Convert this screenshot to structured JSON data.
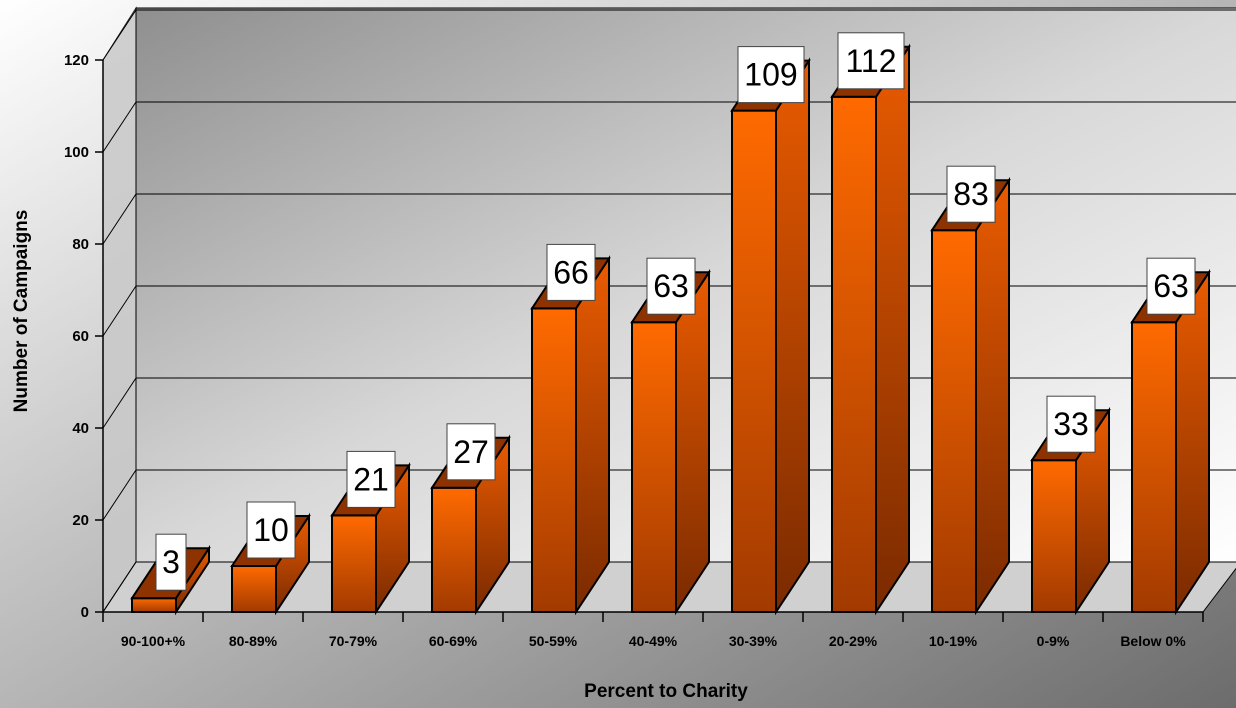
{
  "chart_data": {
    "type": "bar",
    "title": "",
    "xlabel": "Percent to Charity",
    "ylabel": "Number of Campaigns",
    "categories": [
      "90-100+%",
      "80-89%",
      "70-79%",
      "60-69%",
      "50-59%",
      "40-49%",
      "30-39%",
      "20-29%",
      "10-19%",
      "0-9%",
      "Below 0%"
    ],
    "values": [
      3,
      10,
      21,
      27,
      66,
      63,
      109,
      112,
      83,
      33,
      63
    ],
    "ylim": [
      0,
      120
    ],
    "yticks": [
      0,
      20,
      40,
      60,
      80,
      100,
      120
    ],
    "grid": true,
    "legend": "none",
    "bar_color": "#ff6a00",
    "bar_side_color": "#c84d00",
    "bar_top_color": "#9a3a00",
    "background_gradient": [
      "#ffffff",
      "#6c6c6c"
    ]
  }
}
